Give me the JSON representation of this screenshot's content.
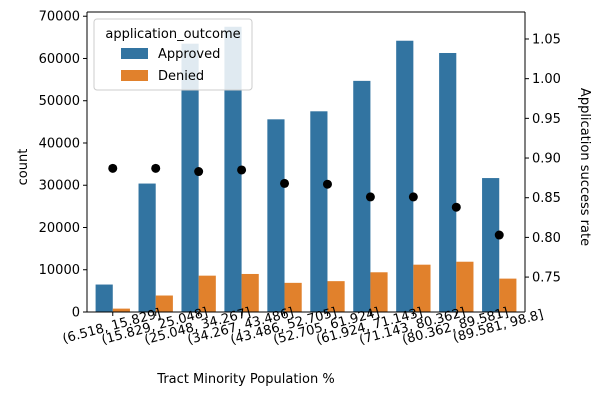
{
  "chart_data": {
    "type": "bar",
    "categories": [
      "(6.518, 15.829]",
      "(15.829, 25.048]",
      "(25.048, 34.267]",
      "(34.267, 43.486]",
      "(43.486, 52.705]",
      "(52.705, 61.924]",
      "(61.924, 71.143]",
      "(71.143, 80.362]",
      "(80.362, 89.581]",
      "(89.581, 98.8]"
    ],
    "xlabel": "Tract Minority Population %",
    "ylabel": "count",
    "ylabel_right": "Application success rate",
    "ylim": [
      0,
      71000
    ],
    "ylim_right": [
      0.706,
      1.084
    ],
    "yticks": [
      0,
      10000,
      20000,
      30000,
      40000,
      50000,
      60000,
      70000
    ],
    "yticks_right": [
      0.75,
      0.8,
      0.85,
      0.9,
      0.95,
      1.0,
      1.05
    ],
    "legend": {
      "title": "application_outcome",
      "placement": "upper left"
    },
    "series": [
      {
        "name": "Approved",
        "color": "#3274a1",
        "values": [
          6500,
          30400,
          63500,
          67500,
          45600,
          47500,
          54700,
          64200,
          61300,
          31700
        ]
      },
      {
        "name": "Denied",
        "color": "#e1812c",
        "values": [
          800,
          3900,
          8600,
          9000,
          6900,
          7300,
          9400,
          11200,
          11900,
          7900
        ]
      }
    ],
    "overlay": {
      "type": "scatter",
      "axis": "right",
      "color": "#000000",
      "values": [
        0.887,
        0.887,
        0.883,
        0.885,
        0.868,
        0.867,
        0.851,
        0.851,
        0.838,
        0.803
      ]
    }
  }
}
